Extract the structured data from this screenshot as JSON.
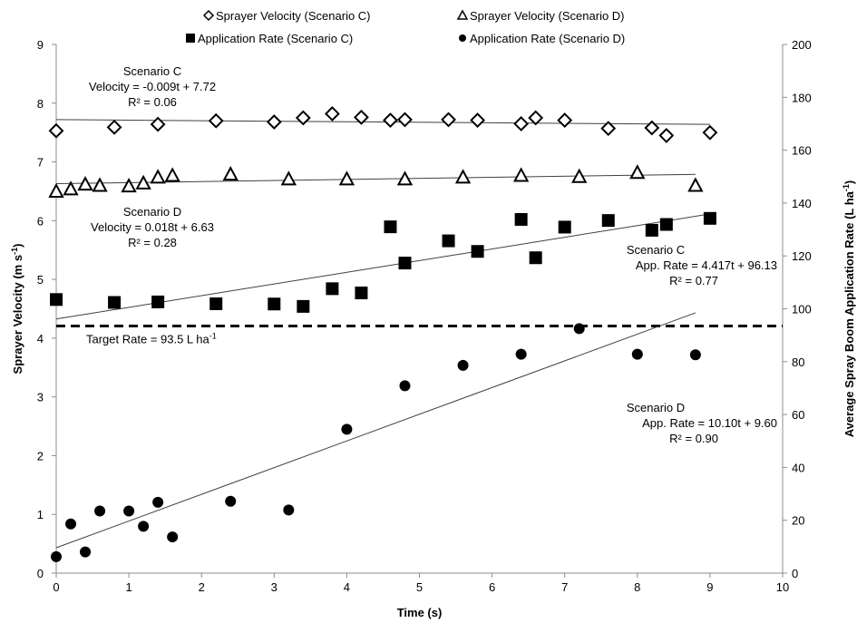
{
  "chart_data": {
    "type": "scatter",
    "xlabel": "Time (s)",
    "ylabel_left": "Sprayer Velocity (m s-1)",
    "ylabel_right": "Average Spray Boom Application Rate (L ha-1)",
    "xlim": [
      0,
      10
    ],
    "ylim_left": [
      0,
      9
    ],
    "ylim_right": [
      0,
      200
    ],
    "x_ticks": [
      0,
      1,
      2,
      3,
      4,
      5,
      6,
      7,
      8,
      9,
      10
    ],
    "y_left_ticks": [
      0,
      1,
      2,
      3,
      4,
      5,
      6,
      7,
      8,
      9
    ],
    "y_right_ticks": [
      0,
      20,
      40,
      60,
      80,
      100,
      120,
      140,
      160,
      180,
      200
    ],
    "grid": false,
    "legend_position": "top",
    "series": [
      {
        "name": "Sprayer Velocity (Scenario C)",
        "axis": "left",
        "marker": "diamond-open",
        "x": [
          0,
          0.8,
          1.4,
          2.2,
          3.0,
          3.4,
          3.8,
          4.2,
          4.6,
          4.8,
          5.4,
          5.8,
          6.4,
          6.6,
          7.0,
          7.6,
          8.2,
          8.4,
          9.0
        ],
        "y": [
          7.53,
          7.59,
          7.64,
          7.7,
          7.68,
          7.75,
          7.82,
          7.76,
          7.71,
          7.72,
          7.72,
          7.71,
          7.65,
          7.75,
          7.71,
          7.57,
          7.58,
          7.45,
          7.5
        ]
      },
      {
        "name": "Sprayer Velocity (Scenario D)",
        "axis": "left",
        "marker": "triangle-open",
        "x": [
          0,
          0.2,
          0.4,
          0.6,
          1.0,
          1.2,
          1.4,
          1.6,
          2.4,
          3.2,
          4.0,
          4.8,
          5.6,
          6.4,
          7.2,
          8.0,
          8.8
        ],
        "y": [
          6.5,
          6.54,
          6.62,
          6.6,
          6.59,
          6.64,
          6.74,
          6.77,
          6.79,
          6.71,
          6.71,
          6.71,
          6.74,
          6.77,
          6.75,
          6.82,
          6.6
        ]
      },
      {
        "name": "Application Rate (Scenario C)",
        "axis": "right",
        "marker": "square-filled",
        "x": [
          0,
          0.8,
          1.4,
          2.2,
          3.0,
          3.4,
          3.8,
          4.2,
          4.6,
          4.8,
          5.4,
          5.8,
          6.4,
          6.6,
          7.0,
          7.6,
          8.2,
          8.4,
          9.0
        ],
        "y": [
          103.5,
          102.4,
          102.6,
          101.9,
          101.8,
          100.9,
          107.6,
          106.0,
          131.0,
          117.3,
          125.7,
          121.7,
          133.8,
          119.3,
          130.9,
          133.4,
          129.7,
          131.9,
          134.2
        ]
      },
      {
        "name": "Application Rate (Scenario D)",
        "axis": "right",
        "marker": "circle-filled",
        "x": [
          0,
          0.2,
          0.4,
          0.6,
          1.0,
          1.2,
          1.4,
          1.6,
          2.4,
          3.2,
          4.0,
          4.8,
          5.6,
          6.4,
          7.2,
          8.0,
          8.8
        ],
        "y": [
          6.2,
          18.6,
          8.0,
          23.5,
          23.5,
          17.7,
          26.8,
          13.7,
          27.2,
          23.9,
          54.4,
          70.9,
          78.6,
          82.8,
          92.5,
          82.8,
          82.6
        ]
      }
    ],
    "trendlines": [
      {
        "series": "Sprayer Velocity (Scenario C)",
        "axis": "left",
        "slope": -0.009,
        "intercept": 7.72,
        "x_range": [
          0,
          9.0
        ]
      },
      {
        "series": "Sprayer Velocity (Scenario D)",
        "axis": "left",
        "slope": 0.018,
        "intercept": 6.63,
        "x_range": [
          0,
          8.8
        ]
      },
      {
        "series": "Application Rate (Scenario C)",
        "axis": "right",
        "slope": 4.417,
        "intercept": 96.13,
        "x_range": [
          0,
          9.0
        ]
      },
      {
        "series": "Application Rate (Scenario D)",
        "axis": "right",
        "slope": 10.1,
        "intercept": 9.6,
        "x_range": [
          0,
          8.8
        ]
      }
    ],
    "target_line": {
      "axis": "right",
      "value": 93.5,
      "style": "dashed",
      "label": "Target Rate = 93.5 L ha-1"
    },
    "annotations": [
      {
        "lines": [
          "Scenario C",
          "Velocity = -0.009t + 7.72",
          "R² = 0.06"
        ]
      },
      {
        "lines": [
          "Scenario D",
          "Velocity = 0.018t + 6.63",
          "R² = 0.28"
        ]
      },
      {
        "lines": [
          "Scenario C",
          "App. Rate = 4.417t + 96.13",
          "R² = 0.77"
        ]
      },
      {
        "lines": [
          "Scenario D",
          "App. Rate = 10.10t + 9.60",
          "R² = 0.90"
        ]
      }
    ]
  }
}
